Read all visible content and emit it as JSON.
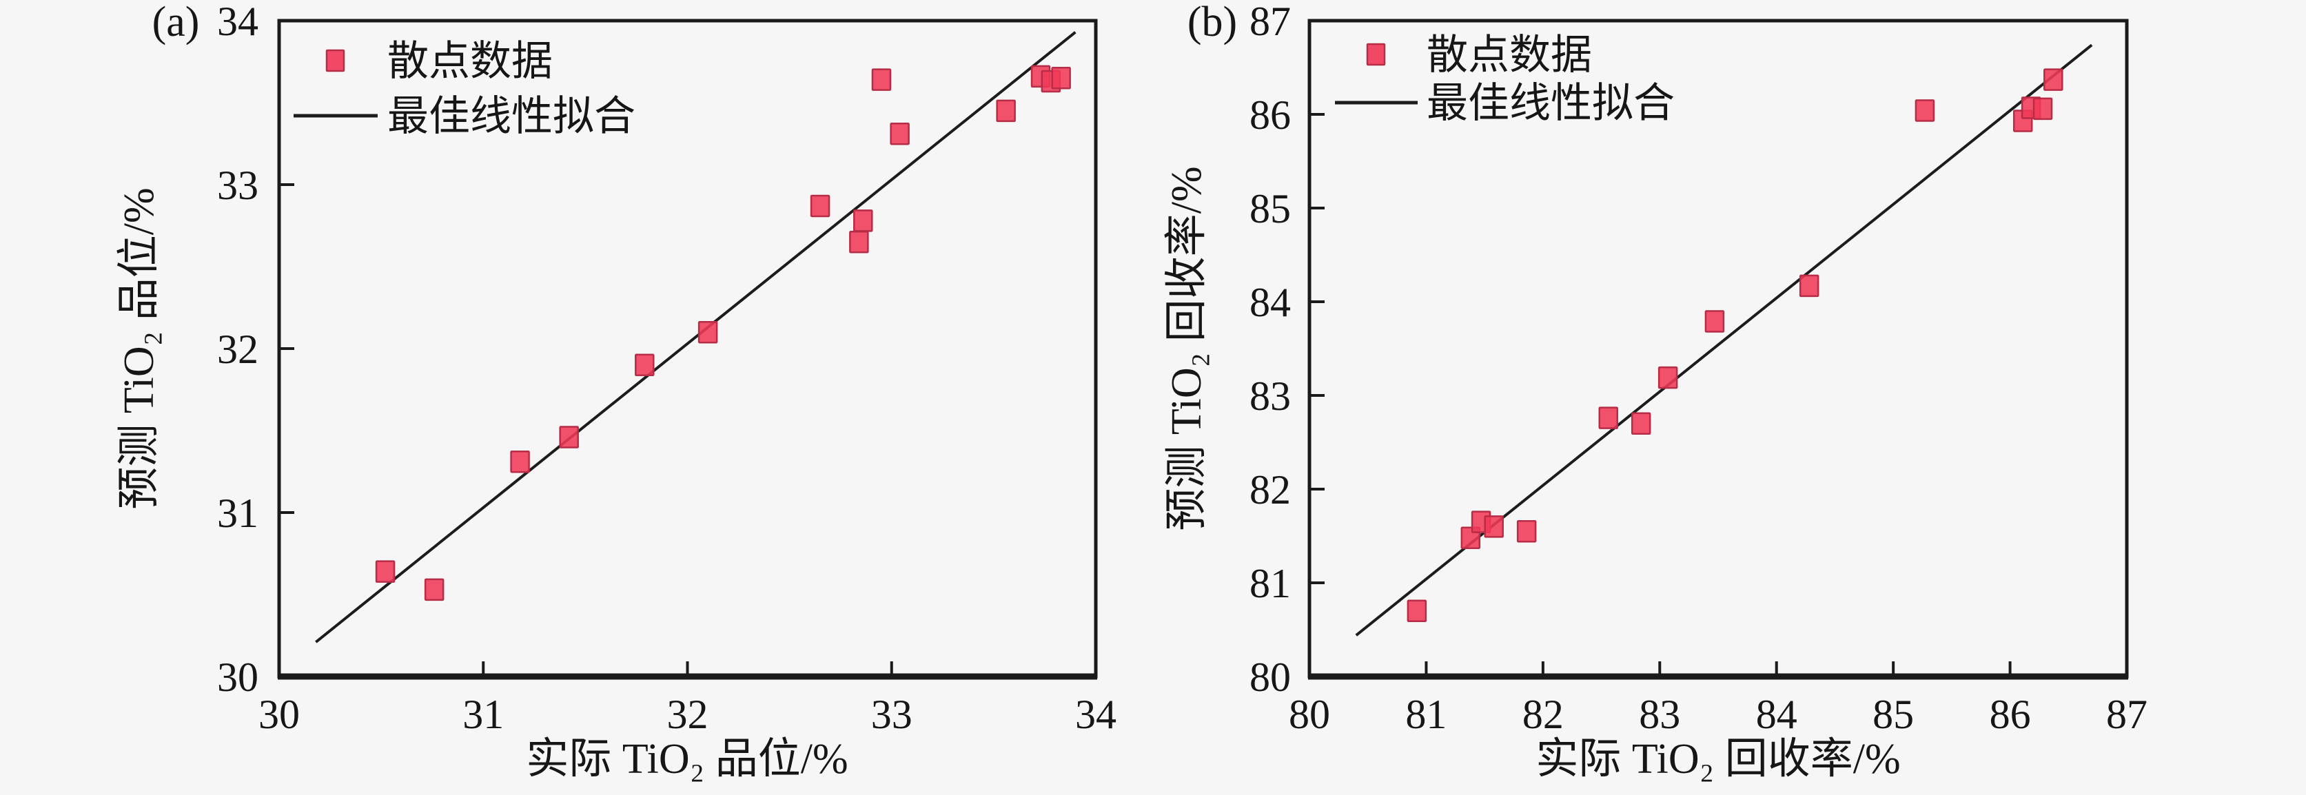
{
  "figure": {
    "background": "#f5f6f5",
    "legend_items": [
      "散点数据",
      "最佳线性拟合"
    ]
  },
  "colors": {
    "marker_fill": "#f03a58",
    "marker_edge": "#b72c46",
    "fit_line": "#1c1c1c",
    "axis": "#1a1a1a",
    "text": "#161616"
  },
  "chart_data": [
    {
      "type": "scatter",
      "panel_label": "(a)",
      "xlabel": "实际 TiO₂ 品位/%",
      "ylabel": "预测 TiO₂ 品位/%",
      "xlim": [
        30,
        34
      ],
      "ylim": [
        30,
        34
      ],
      "xticks": [
        30,
        31,
        32,
        33,
        34
      ],
      "yticks": [
        30,
        31,
        32,
        33,
        34
      ],
      "grid": false,
      "legend_position": "upper left",
      "legend": [
        "散点数据",
        "最佳线性拟合"
      ],
      "series": [
        {
          "name": "散点数据",
          "type": "scatter",
          "marker": "square",
          "points": [
            [
              30.52,
              30.64
            ],
            [
              30.76,
              30.53
            ],
            [
              31.18,
              31.31
            ],
            [
              31.42,
              31.46
            ],
            [
              31.79,
              31.9
            ],
            [
              32.1,
              32.1
            ],
            [
              32.65,
              32.87
            ],
            [
              32.86,
              32.78
            ],
            [
              32.84,
              32.65
            ],
            [
              32.95,
              33.64
            ],
            [
              33.04,
              33.31
            ],
            [
              33.56,
              33.45
            ],
            [
              33.73,
              33.66
            ],
            [
              33.78,
              33.63
            ],
            [
              33.83,
              33.65
            ]
          ]
        },
        {
          "name": "最佳线性拟合",
          "type": "line",
          "points": [
            [
              30.18,
              30.21
            ],
            [
              33.9,
              33.93
            ]
          ]
        }
      ]
    },
    {
      "type": "scatter",
      "panel_label": "(b)",
      "xlabel": "实际 TiO₂ 回收率/%",
      "ylabel": "预测 TiO₂ 回收率/%",
      "xlim": [
        80,
        87
      ],
      "ylim": [
        80,
        87
      ],
      "xticks": [
        80,
        81,
        82,
        83,
        84,
        85,
        86,
        87
      ],
      "yticks": [
        80,
        81,
        82,
        83,
        84,
        85,
        86,
        87
      ],
      "grid": false,
      "legend_position": "upper left",
      "legend": [
        "散点数据",
        "最佳线性拟合"
      ],
      "series": [
        {
          "name": "散点数据",
          "type": "scatter",
          "marker": "square",
          "points": [
            [
              80.92,
              80.7
            ],
            [
              81.38,
              81.48
            ],
            [
              81.47,
              81.65
            ],
            [
              81.58,
              81.6
            ],
            [
              81.86,
              81.55
            ],
            [
              82.56,
              82.76
            ],
            [
              82.84,
              82.7
            ],
            [
              83.07,
              83.19
            ],
            [
              83.47,
              83.79
            ],
            [
              84.28,
              84.17
            ],
            [
              85.27,
              86.04
            ],
            [
              86.11,
              85.93
            ],
            [
              86.18,
              86.07
            ],
            [
              86.28,
              86.06
            ],
            [
              86.37,
              86.37
            ]
          ]
        },
        {
          "name": "最佳线性拟合",
          "type": "line",
          "points": [
            [
              80.4,
              80.44
            ],
            [
              86.7,
              86.74
            ]
          ]
        }
      ]
    }
  ]
}
